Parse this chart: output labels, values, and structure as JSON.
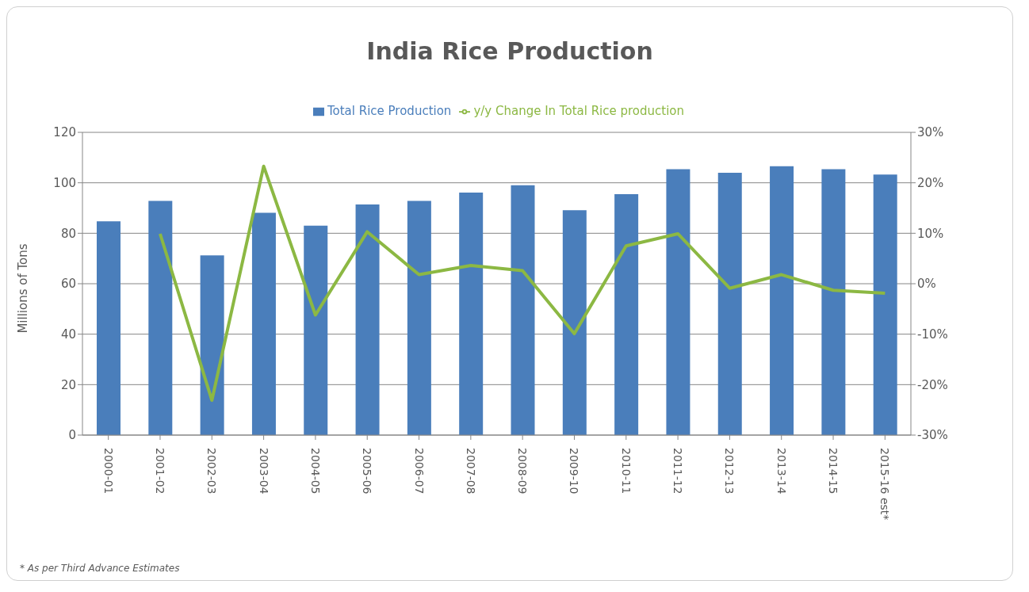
{
  "chart_data": {
    "type": "bar",
    "title": "India Rice Production",
    "ylabel": "Millions of Tons",
    "categories": [
      "2000-01",
      "2001-02",
      "2002-03",
      "2003-04",
      "2004-05",
      "2005-06",
      "2006-07",
      "2007-08",
      "2008-09",
      "2009-10",
      "2010-11",
      "2011-12",
      "2012-13",
      "2013-14",
      "2014-15",
      "2015-16 est*"
    ],
    "series": [
      {
        "name": "Total Rice Production",
        "color": "#4a7ebb",
        "values": [
          84.7,
          92.8,
          71.2,
          88.1,
          83.0,
          91.4,
          92.8,
          96.1,
          99.0,
          89.1,
          95.5,
          105.4,
          104.0,
          106.6,
          105.4,
          103.3
        ]
      },
      {
        "name": "y/y Change In Total Rice production",
        "type": "line",
        "axis": "y2",
        "color": "#8cb843",
        "values": [
          null,
          9.9,
          -23.1,
          23.3,
          -6.2,
          10.3,
          1.8,
          3.6,
          2.6,
          -9.9,
          7.5,
          9.9,
          -0.9,
          1.8,
          -1.3,
          -1.9
        ]
      }
    ],
    "ylim": [
      0,
      120
    ],
    "yticks": [
      0,
      20,
      40,
      60,
      80,
      100,
      120
    ],
    "y2lim": [
      -30,
      30
    ],
    "y2ticks": [
      {
        "value": -30,
        "label": "-30%"
      },
      {
        "value": -20,
        "label": "-20%"
      },
      {
        "value": -10,
        "label": "-10%"
      },
      {
        "value": 0,
        "label": "0%"
      },
      {
        "value": 10,
        "label": "10%"
      },
      {
        "value": 20,
        "label": "20%"
      },
      {
        "value": 30,
        "label": "30%"
      }
    ],
    "grid": "y",
    "legend": "top",
    "marker": "none",
    "annotations": [
      "* As per Third Advance Estimates"
    ]
  }
}
